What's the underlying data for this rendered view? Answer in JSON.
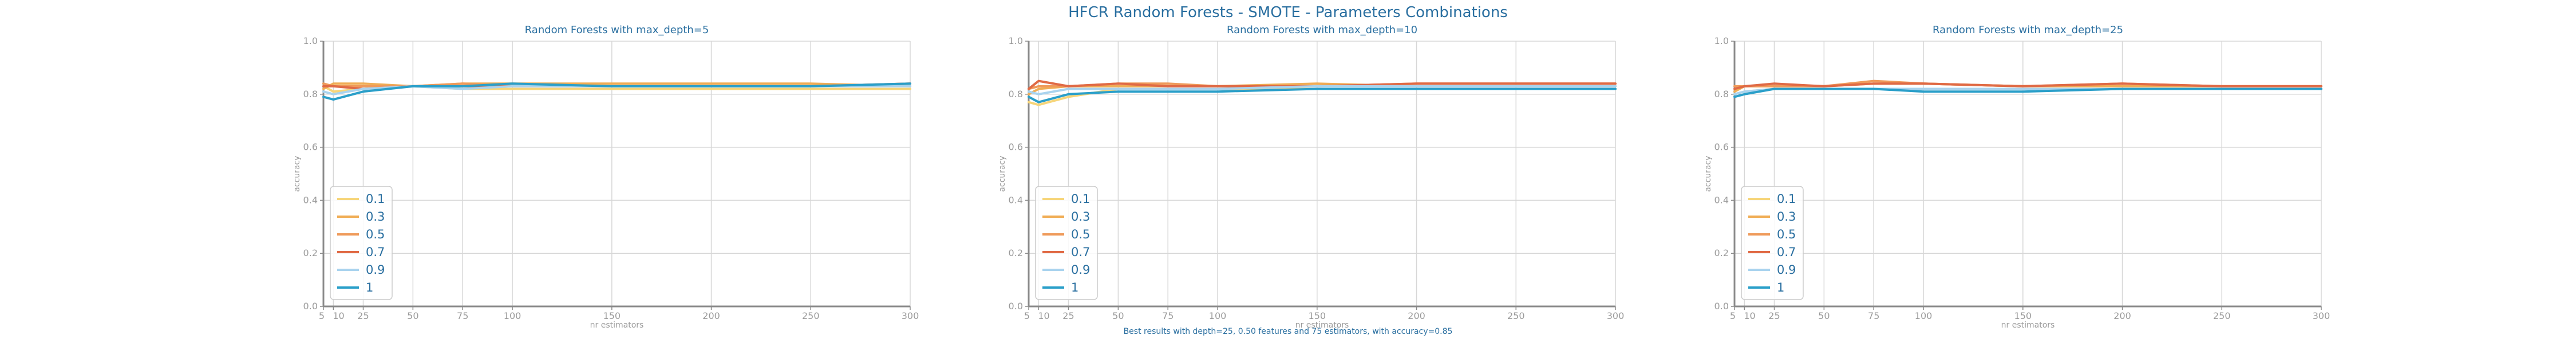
{
  "figure": {
    "title": "HFCR Random Forests - SMOTE - Parameters Combinations",
    "footnote": "Best results with depth=25, 0.50 features and 75 estimators, with accuracy=0.85"
  },
  "colors": {
    "series": [
      "#f6d57a",
      "#f0ad55",
      "#ef9a5a",
      "#e06a45",
      "#a9d3ee",
      "#2a9fc9"
    ],
    "grid": "#d7d7d7",
    "axis": "#8a8a8a",
    "text": "#2a6fa0",
    "tick_text": "#9a9a9a"
  },
  "chart_data": [
    {
      "type": "line",
      "title": "Random Forests with max_depth=5",
      "xlabel": "nr estimators",
      "ylabel": "accuracy",
      "xlim": [
        5,
        300
      ],
      "ylim": [
        0.0,
        1.0
      ],
      "xticks": [
        5,
        10,
        25,
        50,
        75,
        100,
        150,
        200,
        250,
        300
      ],
      "yticks": [
        0.0,
        0.2,
        0.4,
        0.6,
        0.8,
        1.0
      ],
      "grid": true,
      "legend": "lower-left",
      "x": [
        5,
        10,
        25,
        50,
        75,
        100,
        150,
        200,
        250,
        300
      ],
      "series": [
        {
          "name": "0.1",
          "values": [
            0.83,
            0.81,
            0.82,
            0.83,
            0.82,
            0.82,
            0.82,
            0.82,
            0.82,
            0.82
          ]
        },
        {
          "name": "0.3",
          "values": [
            0.82,
            0.84,
            0.84,
            0.83,
            0.84,
            0.84,
            0.84,
            0.84,
            0.84,
            0.83
          ]
        },
        {
          "name": "0.5",
          "values": [
            0.84,
            0.83,
            0.83,
            0.83,
            0.84,
            0.83,
            0.83,
            0.83,
            0.83,
            0.84
          ]
        },
        {
          "name": "0.7",
          "values": [
            0.83,
            0.83,
            0.82,
            0.83,
            0.83,
            0.83,
            0.83,
            0.83,
            0.83,
            0.84
          ]
        },
        {
          "name": "0.9",
          "values": [
            0.81,
            0.8,
            0.82,
            0.83,
            0.82,
            0.83,
            0.83,
            0.83,
            0.83,
            0.83
          ]
        },
        {
          "name": "1",
          "values": [
            0.79,
            0.78,
            0.81,
            0.83,
            0.83,
            0.84,
            0.83,
            0.83,
            0.83,
            0.84
          ]
        }
      ]
    },
    {
      "type": "line",
      "title": "Random Forests with max_depth=10",
      "xlabel": "nr estimators",
      "ylabel": "accuracy",
      "xlim": [
        5,
        300
      ],
      "ylim": [
        0.0,
        1.0
      ],
      "xticks": [
        5,
        10,
        25,
        50,
        75,
        100,
        150,
        200,
        250,
        300
      ],
      "yticks": [
        0.0,
        0.2,
        0.4,
        0.6,
        0.8,
        1.0
      ],
      "grid": true,
      "legend": "lower-left",
      "x": [
        5,
        10,
        25,
        50,
        75,
        100,
        150,
        200,
        250,
        300
      ],
      "series": [
        {
          "name": "0.1",
          "values": [
            0.77,
            0.76,
            0.79,
            0.82,
            0.82,
            0.82,
            0.82,
            0.82,
            0.82,
            0.82
          ]
        },
        {
          "name": "0.3",
          "values": [
            0.8,
            0.82,
            0.83,
            0.83,
            0.83,
            0.83,
            0.84,
            0.83,
            0.83,
            0.83
          ]
        },
        {
          "name": "0.5",
          "values": [
            0.82,
            0.83,
            0.83,
            0.84,
            0.84,
            0.83,
            0.83,
            0.84,
            0.84,
            0.84
          ]
        },
        {
          "name": "0.7",
          "values": [
            0.82,
            0.85,
            0.83,
            0.84,
            0.83,
            0.83,
            0.83,
            0.84,
            0.84,
            0.84
          ]
        },
        {
          "name": "0.9",
          "values": [
            0.81,
            0.8,
            0.82,
            0.82,
            0.82,
            0.82,
            0.83,
            0.83,
            0.83,
            0.83
          ]
        },
        {
          "name": "1",
          "values": [
            0.79,
            0.77,
            0.8,
            0.81,
            0.81,
            0.81,
            0.82,
            0.82,
            0.82,
            0.82
          ]
        }
      ]
    },
    {
      "type": "line",
      "title": "Random Forests with max_depth=25",
      "xlabel": "nr estimators",
      "ylabel": "accuracy",
      "xlim": [
        5,
        300
      ],
      "ylim": [
        0.0,
        1.0
      ],
      "xticks": [
        5,
        10,
        25,
        50,
        75,
        100,
        150,
        200,
        250,
        300
      ],
      "yticks": [
        0.0,
        0.2,
        0.4,
        0.6,
        0.8,
        1.0
      ],
      "grid": true,
      "legend": "lower-left",
      "x": [
        5,
        10,
        25,
        50,
        75,
        100,
        150,
        200,
        250,
        300
      ],
      "series": [
        {
          "name": "0.1",
          "values": [
            0.8,
            0.81,
            0.82,
            0.82,
            0.82,
            0.82,
            0.82,
            0.82,
            0.82,
            0.82
          ]
        },
        {
          "name": "0.3",
          "values": [
            0.81,
            0.83,
            0.83,
            0.83,
            0.84,
            0.84,
            0.83,
            0.83,
            0.83,
            0.83
          ]
        },
        {
          "name": "0.5",
          "values": [
            0.83,
            0.83,
            0.83,
            0.83,
            0.85,
            0.84,
            0.83,
            0.84,
            0.83,
            0.83
          ]
        },
        {
          "name": "0.7",
          "values": [
            0.82,
            0.83,
            0.84,
            0.83,
            0.84,
            0.84,
            0.83,
            0.84,
            0.83,
            0.83
          ]
        },
        {
          "name": "0.9",
          "values": [
            0.8,
            0.81,
            0.82,
            0.82,
            0.82,
            0.82,
            0.82,
            0.82,
            0.82,
            0.82
          ]
        },
        {
          "name": "1",
          "values": [
            0.79,
            0.8,
            0.82,
            0.82,
            0.82,
            0.81,
            0.81,
            0.82,
            0.82,
            0.82
          ]
        }
      ]
    }
  ]
}
